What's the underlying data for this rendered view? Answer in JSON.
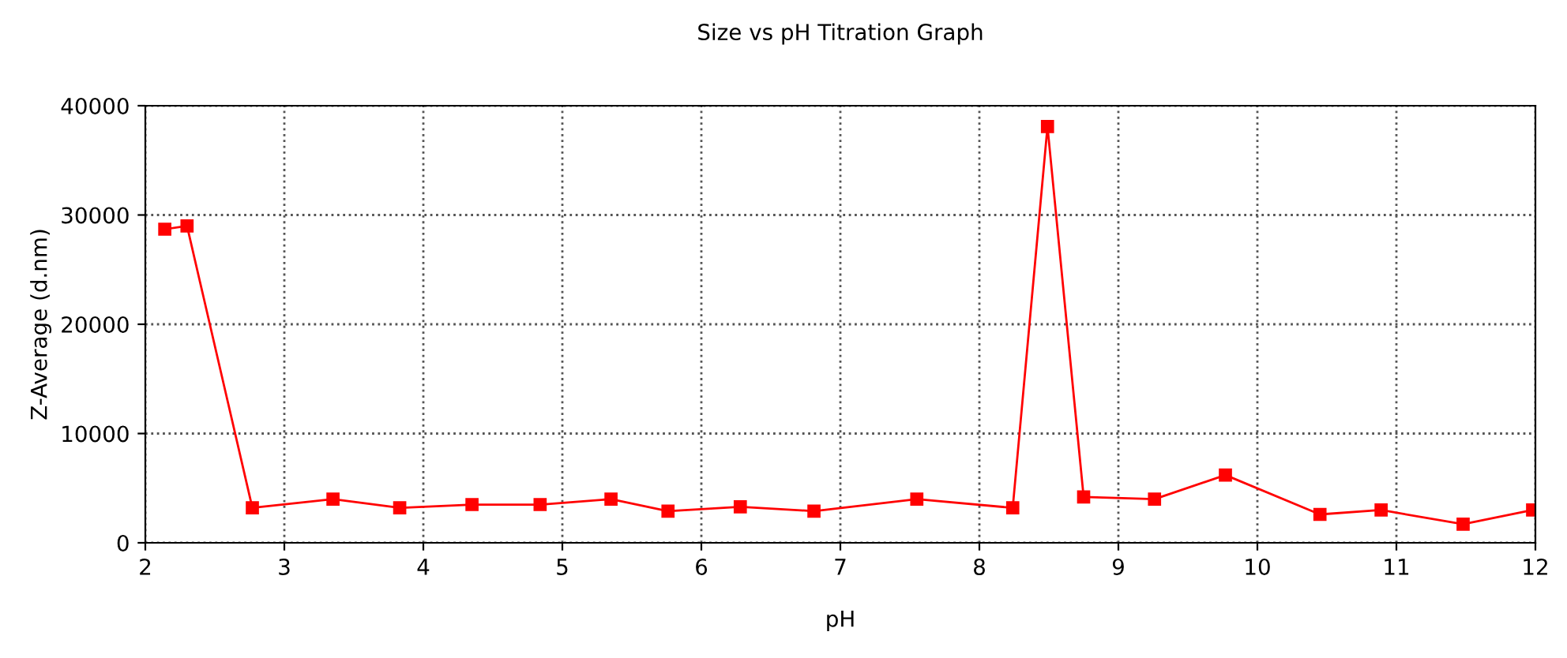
{
  "chart_data": {
    "type": "line",
    "title": "Size vs pH Titration Graph",
    "xlabel": "pH",
    "ylabel": "Z-Average (d.nm)",
    "x": [
      2.14,
      2.3,
      2.77,
      3.35,
      3.83,
      4.35,
      4.84,
      5.35,
      5.76,
      6.28,
      6.81,
      7.55,
      8.24,
      8.49,
      8.75,
      9.26,
      9.77,
      10.45,
      10.89,
      11.48,
      11.98
    ],
    "series": [
      {
        "color": "#ff0000",
        "values": [
          28700,
          29000,
          3200,
          4000,
          3200,
          3500,
          3500,
          4000,
          2900,
          3300,
          2900,
          4000,
          3200,
          38100,
          4200,
          4000,
          6200,
          2600,
          3000,
          1700,
          3000
        ]
      }
    ],
    "xlim": [
      2,
      12
    ],
    "xticks": [
      2,
      3,
      4,
      5,
      6,
      7,
      8,
      9,
      10,
      11,
      12
    ],
    "ylim": [
      0,
      40000
    ],
    "yticks": [
      0,
      10000,
      20000,
      30000,
      40000
    ],
    "grid": true,
    "marker": "square",
    "line_style": "solid",
    "legend": false
  }
}
